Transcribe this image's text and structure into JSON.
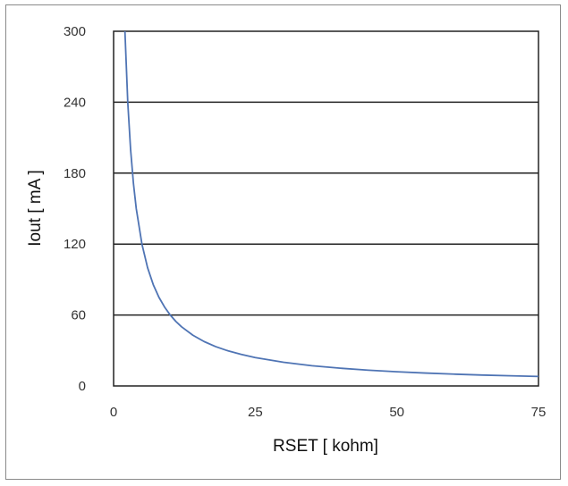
{
  "chart_data": {
    "type": "line",
    "title": "",
    "xlabel": "RSET [ kohm]",
    "ylabel": "Iout [ mA ]",
    "xlim": [
      0,
      75
    ],
    "ylim": [
      0,
      300
    ],
    "x_ticks": [
      "0",
      "25",
      "50",
      "75"
    ],
    "y_ticks": [
      "0",
      "60",
      "120",
      "180",
      "240",
      "300"
    ],
    "grid": "horizontal",
    "legend": "none",
    "series": [
      {
        "color": "#4f74b4",
        "x": [
          2,
          2.5,
          3,
          3.5,
          4,
          5,
          6,
          7,
          8,
          9,
          10,
          11,
          12,
          14,
          16,
          18,
          20,
          22.5,
          25,
          30,
          35,
          40,
          45,
          50,
          55,
          60,
          65,
          70,
          75
        ],
        "y": [
          300,
          240,
          200,
          171.4,
          150,
          120,
          100,
          85.7,
          75,
          66.7,
          60,
          54.5,
          50,
          42.9,
          37.5,
          33.3,
          30,
          26.7,
          24,
          20,
          17.1,
          15,
          13.3,
          12,
          10.9,
          10,
          9.2,
          8.6,
          8
        ]
      }
    ]
  }
}
